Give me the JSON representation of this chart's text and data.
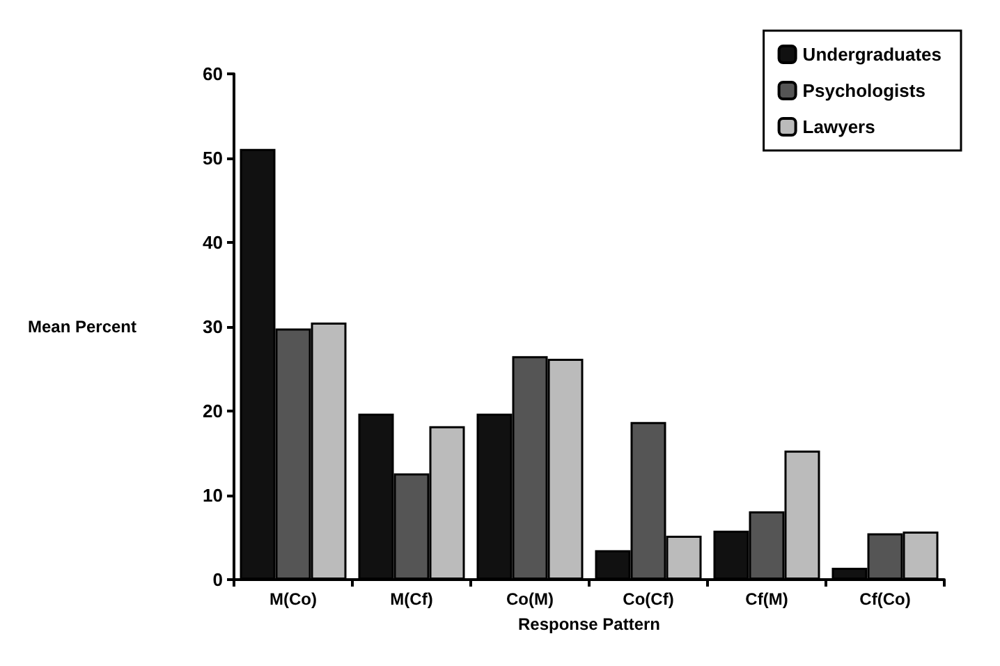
{
  "chart_data": {
    "type": "bar",
    "xlabel": "Response Pattern",
    "ylabel": "Mean Percent",
    "categories": [
      "M(Co)",
      "M(Cf)",
      "Co(M)",
      "Co(Cf)",
      "Cf(M)",
      "Cf(Co)"
    ],
    "series": [
      {
        "name": "Undergraduates",
        "color": "#111111",
        "values": [
          51.1,
          19.7,
          19.7,
          3.5,
          5.8,
          1.4
        ]
      },
      {
        "name": "Psychologists",
        "color": "#555555",
        "values": [
          29.8,
          12.6,
          26.5,
          18.7,
          8.1,
          5.5
        ]
      },
      {
        "name": "Lawyers",
        "color": "#bbbbbb",
        "values": [
          30.5,
          18.2,
          26.2,
          5.2,
          15.3,
          5.7
        ]
      }
    ],
    "ylim": [
      0,
      60
    ],
    "yticks": [
      0,
      10,
      20,
      30,
      40,
      50,
      60
    ],
    "grid": false,
    "legend": "top right"
  }
}
